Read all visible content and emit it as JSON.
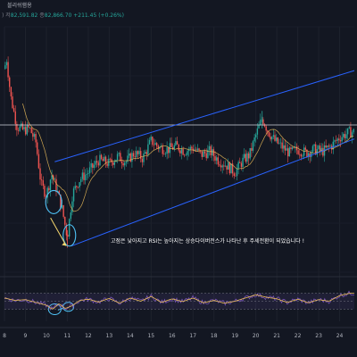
{
  "header": {
    "title": "블리쉬햄용",
    "open_prefix": ")",
    "high_label": "저",
    "high_value": "82,591.82",
    "close_label": "종",
    "close_value": "82,866.70",
    "change": "+211.45 (+0.26%)"
  },
  "annotation": "고점은 낮아지고 RSI는 높아지는 상승다이버전스가 나타난 후 주세전환이 되었습니다 !",
  "colors": {
    "background": "#131722",
    "up": "#26a69a",
    "down": "#ef5350",
    "channel": "#2962ff",
    "ma": "#f0c05a",
    "rsi": "#7e57c2",
    "rsi_ma": "#f0c05a",
    "circle": "#4fc3f7",
    "arrow": "#f5d76e",
    "horizontal": "#d1d4dc"
  },
  "chart_data": [
    {
      "type": "candlestick",
      "x_ticks": [
        "8",
        "9",
        "10",
        "11",
        "12",
        "13",
        "14",
        "15",
        "16",
        "17",
        "18",
        "19",
        "20",
        "21",
        "22",
        "23",
        "24"
      ],
      "price_path": [
        [
          8.0,
          88.0
        ],
        [
          8.1,
          91.0
        ],
        [
          8.3,
          80.0
        ],
        [
          8.6,
          71.5
        ],
        [
          8.9,
          70.5
        ],
        [
          9.2,
          71.0
        ],
        [
          9.5,
          67.0
        ],
        [
          9.75,
          55.0
        ],
        [
          10.0,
          52.0
        ],
        [
          10.25,
          58.0
        ],
        [
          10.5,
          53.5
        ],
        [
          10.75,
          48.0
        ],
        [
          11.0,
          40.0
        ],
        [
          11.25,
          52.5
        ],
        [
          11.6,
          56.5
        ],
        [
          12.0,
          58.5
        ],
        [
          12.5,
          62.0
        ],
        [
          13.0,
          61.0
        ],
        [
          13.4,
          63.0
        ],
        [
          13.8,
          61.5
        ],
        [
          14.2,
          64.0
        ],
        [
          14.6,
          62.5
        ],
        [
          15.0,
          67.5
        ],
        [
          15.4,
          65.5
        ],
        [
          15.8,
          65.0
        ],
        [
          16.2,
          66.0
        ],
        [
          16.6,
          64.5
        ],
        [
          17.0,
          65.5
        ],
        [
          17.4,
          63.5
        ],
        [
          17.8,
          64.5
        ],
        [
          18.2,
          62.0
        ],
        [
          18.6,
          60.5
        ],
        [
          19.0,
          58.5
        ],
        [
          19.4,
          62.0
        ],
        [
          19.7,
          63.5
        ],
        [
          20.0,
          69.0
        ],
        [
          20.3,
          74.0
        ],
        [
          20.6,
          70.0
        ],
        [
          20.9,
          67.5
        ],
        [
          21.2,
          66.0
        ],
        [
          21.6,
          64.0
        ],
        [
          22.0,
          65.0
        ],
        [
          22.4,
          64.0
        ],
        [
          22.8,
          65.0
        ],
        [
          23.2,
          64.5
        ],
        [
          23.6,
          66.0
        ],
        [
          24.0,
          68.5
        ],
        [
          24.5,
          70.0
        ]
      ],
      "swing_high": [
        20.3,
        76.0
      ],
      "swing_low": [
        11.0,
        37.0
      ],
      "horizontal_level": 72.0,
      "channel_upper": [
        [
          10.4,
          61.5
        ],
        [
          24.7,
          87.5
        ]
      ],
      "channel_lower": [
        [
          11.2,
          37.5
        ],
        [
          24.7,
          68.0
        ]
      ],
      "ylim": [
        30,
        100
      ],
      "xlim": [
        8,
        24.7
      ]
    },
    {
      "type": "line",
      "name": "RSI",
      "x": [
        8.0,
        8.5,
        9.0,
        9.5,
        10.0,
        10.3,
        10.6,
        10.9,
        11.2,
        11.6,
        12.0,
        12.5,
        13.0,
        13.5,
        14.0,
        14.5,
        15.0,
        15.5,
        16.0,
        16.5,
        17.0,
        17.5,
        18.0,
        18.5,
        19.0,
        19.5,
        20.0,
        20.5,
        21.0,
        21.5,
        22.0,
        22.5,
        23.0,
        23.5,
        24.0,
        24.5
      ],
      "y": [
        58,
        52,
        54,
        47,
        40,
        30,
        44,
        32,
        38,
        52,
        55,
        48,
        57,
        45,
        58,
        50,
        62,
        47,
        56,
        49,
        58,
        46,
        52,
        45,
        50,
        58,
        66,
        60,
        56,
        47,
        55,
        46,
        54,
        50,
        64,
        70
      ],
      "ylim": [
        0,
        100
      ]
    }
  ]
}
